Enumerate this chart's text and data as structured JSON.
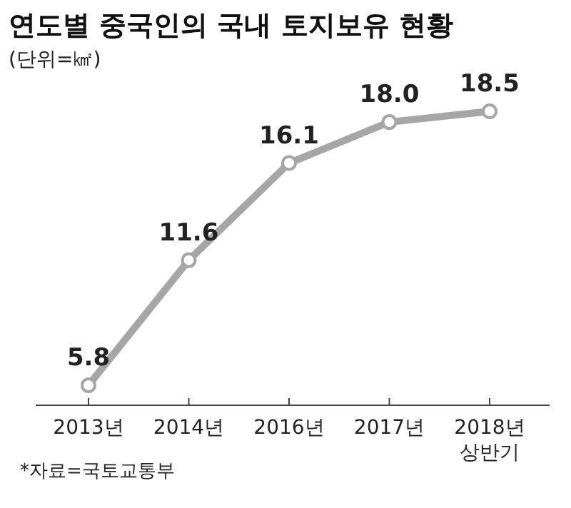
{
  "chart_data": {
    "type": "line",
    "title": "연도별 중국인의 국내 토지보유 현황",
    "subtitle": "(단위=㎢)",
    "categories": [
      "2013년",
      "2014년",
      "2016년",
      "2017년",
      "2018년\n상반기"
    ],
    "values": [
      5.8,
      11.6,
      16.1,
      18.0,
      18.5
    ],
    "value_labels": [
      "5.8",
      "11.6",
      "16.1",
      "18.0",
      "18.5"
    ],
    "color": "#a6a6a6",
    "marker": "circle",
    "line_style": "solid",
    "annotations": [
      "*자료=국토교통부"
    ]
  }
}
